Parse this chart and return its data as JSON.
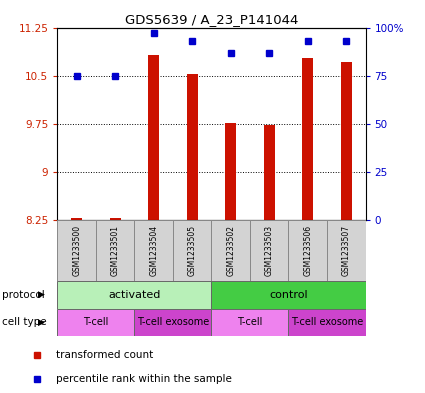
{
  "title": "GDS5639 / A_23_P141044",
  "samples": [
    "GSM1233500",
    "GSM1233501",
    "GSM1233504",
    "GSM1233505",
    "GSM1233502",
    "GSM1233503",
    "GSM1233506",
    "GSM1233507"
  ],
  "bar_values": [
    8.28,
    8.28,
    10.82,
    10.52,
    9.77,
    9.73,
    10.77,
    10.72
  ],
  "bar_bottom": 8.25,
  "percentile_pct": [
    75,
    75,
    97,
    93,
    87,
    87,
    93,
    93
  ],
  "ylim_left": [
    8.25,
    11.25
  ],
  "ylim_right": [
    0,
    100
  ],
  "yticks_left": [
    8.25,
    9.0,
    9.75,
    10.5,
    11.25
  ],
  "yticks_right": [
    0,
    25,
    50,
    75,
    100
  ],
  "ytick_labels_left": [
    "8.25",
    "9",
    "9.75",
    "10.5",
    "11.25"
  ],
  "ytick_labels_right": [
    "0",
    "25",
    "50",
    "75",
    "100%"
  ],
  "protocol_groups": [
    {
      "label": "activated",
      "start": 0,
      "end": 4,
      "color": "#b8f0b8"
    },
    {
      "label": "control",
      "start": 4,
      "end": 8,
      "color": "#44cc44"
    }
  ],
  "cell_type_groups": [
    {
      "label": "T-cell",
      "start": 0,
      "end": 2,
      "color": "#ee82ee"
    },
    {
      "label": "T-cell exosome",
      "start": 2,
      "end": 4,
      "color": "#cc44cc"
    },
    {
      "label": "T-cell",
      "start": 4,
      "end": 6,
      "color": "#ee82ee"
    },
    {
      "label": "T-cell exosome",
      "start": 6,
      "end": 8,
      "color": "#cc44cc"
    }
  ],
  "bar_color": "#cc1100",
  "dot_color": "#0000cc",
  "chart_bg": "#ffffff",
  "label_bg": "#d3d3d3"
}
